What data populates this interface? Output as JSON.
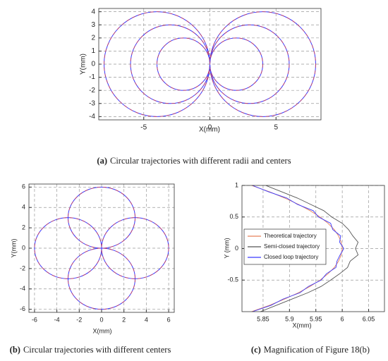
{
  "chart_data": [
    {
      "type": "circle",
      "xlabel": "X(mm)",
      "ylabel": "Y(mm)",
      "caption_label": "(a)",
      "caption": "Circular trajectories with different radii and centers",
      "xlim": [
        -8.4,
        8.4
      ],
      "ylim": [
        -4.25,
        4.25
      ],
      "xticks": [
        -5,
        0,
        5
      ],
      "yticks": [
        -4,
        -3,
        -2,
        -1,
        0,
        1,
        2,
        3,
        4
      ],
      "grid": true,
      "color": "#3a3aff",
      "dash_color": "#d0405a",
      "circles": [
        {
          "cx": -4,
          "cy": 0,
          "r": 4
        },
        {
          "cx": -3,
          "cy": 0,
          "r": 3
        },
        {
          "cx": -2,
          "cy": 0,
          "r": 2
        },
        {
          "cx": 2,
          "cy": 0,
          "r": 2
        },
        {
          "cx": 3,
          "cy": 0,
          "r": 3
        },
        {
          "cx": 4,
          "cy": 0,
          "r": 4
        }
      ]
    },
    {
      "type": "circle",
      "xlabel": "X(mm)",
      "ylabel": "Y(mm)",
      "caption_label": "(b)",
      "caption": "Circular trajectories with different centers",
      "xlim": [
        -6.5,
        6.5
      ],
      "ylim": [
        -6.3,
        6.3
      ],
      "xticks": [
        -6,
        -4,
        -2,
        0,
        2,
        4,
        6
      ],
      "yticks": [
        -6,
        -4,
        -2,
        0,
        2,
        4,
        6
      ],
      "grid": true,
      "color": "#3a3aff",
      "dash_color": "#d0405a",
      "circles": [
        {
          "cx": 0,
          "cy": 3,
          "r": 3
        },
        {
          "cx": 0,
          "cy": -3,
          "r": 3
        },
        {
          "cx": -3,
          "cy": 0,
          "r": 3
        },
        {
          "cx": 3,
          "cy": 0,
          "r": 3
        }
      ]
    },
    {
      "type": "line",
      "xlabel": "X(mm)",
      "ylabel": "Y (mm)",
      "caption_label": "(c)",
      "caption": "Magnification of Figure 18(b)",
      "xlim": [
        5.81,
        6.08
      ],
      "ylim": [
        -1,
        1
      ],
      "xticks": [
        5.85,
        5.9,
        5.95,
        6,
        6.05
      ],
      "yticks": [
        -0.5,
        0,
        0.5,
        1
      ],
      "grid": true,
      "legend": "center-left",
      "series": [
        {
          "name": "Theoretical trajectory",
          "color": "#e8805a",
          "x": [
            5.828,
            5.862,
            5.891,
            5.917,
            5.939,
            5.958,
            5.973,
            5.985,
            5.993,
            5.998,
            6.0,
            5.998,
            5.993,
            5.985,
            5.973,
            5.958,
            5.939,
            5.917,
            5.891,
            5.862,
            5.828
          ],
          "values": [
            1,
            0.9,
            0.8,
            0.7,
            0.6,
            0.5,
            0.4,
            0.3,
            0.2,
            0.1,
            0,
            -0.1,
            -0.2,
            -0.3,
            -0.4,
            -0.5,
            -0.6,
            -0.7,
            -0.8,
            -0.9,
            -1
          ]
        },
        {
          "name": "Semi-closed trajectory",
          "color": "#555555",
          "x": [
            5.855,
            5.885,
            5.915,
            5.94,
            5.965,
            5.98,
            6.0,
            6.012,
            6.02,
            6.03,
            6.025,
            6.03,
            6.015,
            6.01,
            5.995,
            5.978,
            5.96,
            5.935,
            5.905,
            5.875,
            5.845
          ],
          "values": [
            1,
            0.9,
            0.8,
            0.7,
            0.6,
            0.5,
            0.4,
            0.3,
            0.2,
            0.1,
            0,
            -0.1,
            -0.2,
            -0.3,
            -0.4,
            -0.5,
            -0.6,
            -0.7,
            -0.8,
            -0.9,
            -1
          ]
        },
        {
          "name": "Closed loop trajectory",
          "color": "#3a3aff",
          "x": [
            5.83,
            5.86,
            5.895,
            5.915,
            5.945,
            5.955,
            5.978,
            5.982,
            5.997,
            5.995,
            6.003,
            5.996,
            5.99,
            5.988,
            5.97,
            5.96,
            5.936,
            5.92,
            5.888,
            5.865,
            5.83
          ],
          "values": [
            1,
            0.9,
            0.8,
            0.7,
            0.6,
            0.5,
            0.4,
            0.3,
            0.2,
            0.1,
            0,
            -0.1,
            -0.2,
            -0.3,
            -0.4,
            -0.5,
            -0.6,
            -0.7,
            -0.8,
            -0.9,
            -1
          ]
        }
      ]
    }
  ]
}
